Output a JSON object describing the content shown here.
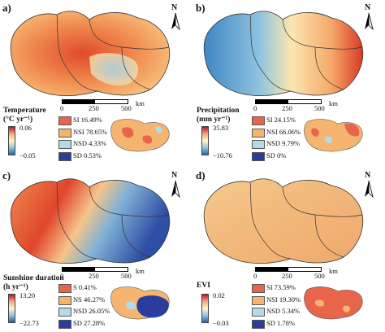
{
  "panels": [
    {
      "id": "a",
      "label": "a)",
      "variable": "Temperature",
      "unit": "(°C yr⁻¹)",
      "colorbar": {
        "max": "0.06",
        "min": "−0.05",
        "colors": [
          "#b2182b",
          "#f4a582",
          "#fff7c8",
          "#92c5de",
          "#2166ac"
        ]
      },
      "legend": [
        {
          "text": "SI 16.49%",
          "color": "#e8644a"
        },
        {
          "text": "NSI 78.65%",
          "color": "#f5b46f"
        },
        {
          "text": "NSD 4.33%",
          "color": "#b3dcea"
        },
        {
          "text": "SD 0.53%",
          "color": "#2b3d9c"
        }
      ]
    },
    {
      "id": "b",
      "label": "b)",
      "variable": "Precipitation",
      "unit": "(mm yr⁻¹)",
      "colorbar": {
        "max": "35.83",
        "min": "−10.76",
        "colors": [
          "#b2182b",
          "#f4a582",
          "#fff7c8",
          "#92c5de",
          "#2166ac"
        ]
      },
      "legend": [
        {
          "text": "SI 24.15%",
          "color": "#e8644a"
        },
        {
          "text": "NSI 66.06%",
          "color": "#f5b46f"
        },
        {
          "text": "NSD 9.79%",
          "color": "#b3dcea"
        },
        {
          "text": "SD 0%",
          "color": "#2b3d9c"
        }
      ]
    },
    {
      "id": "c",
      "label": "c)",
      "variable": "Sunshine duration",
      "unit": "(h yr⁻¹)",
      "colorbar": {
        "max": "13.20",
        "min": "−22.73",
        "colors": [
          "#b2182b",
          "#f4a582",
          "#fff7c8",
          "#92c5de",
          "#2166ac"
        ]
      },
      "legend": [
        {
          "text": "S 0.41%",
          "color": "#e8644a"
        },
        {
          "text": "NS 46.27%",
          "color": "#f5b46f"
        },
        {
          "text": "NSD 26.05%",
          "color": "#b3dcea"
        },
        {
          "text": "SD 27.28%",
          "color": "#2b3d9c"
        }
      ]
    },
    {
      "id": "d",
      "label": "d)",
      "variable": "EVI",
      "unit": "",
      "colorbar": {
        "max": "0.02",
        "min": "−0.03",
        "colors": [
          "#b2182b",
          "#f4a582",
          "#fff7c8",
          "#92c5de",
          "#2166ac"
        ]
      },
      "legend": [
        {
          "text": "SI 73.59%",
          "color": "#e8644a"
        },
        {
          "text": "NSI 19.30%",
          "color": "#f5b46f"
        },
        {
          "text": "NSD 5.34%",
          "color": "#b3dcea"
        },
        {
          "text": "SD 1.78%",
          "color": "#2b3d9c"
        }
      ]
    }
  ],
  "scale_bar": {
    "ticks": [
      "0",
      "250",
      "500"
    ],
    "unit": "km"
  },
  "north_arrow": {
    "label": "N",
    "icon": "north-arrow-icon"
  }
}
